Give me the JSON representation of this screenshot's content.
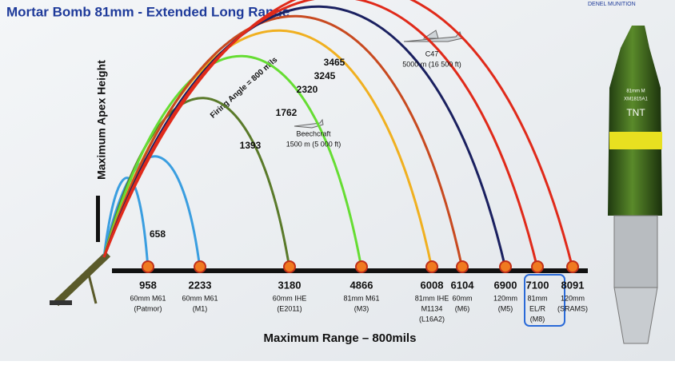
{
  "header": {
    "title": "Mortar Bomb 81mm - Extended Long Range",
    "logo": "DENEL MUNITION"
  },
  "axes": {
    "y_label": "Maximum Apex Height",
    "x_label": "Maximum Range – 800mils",
    "angle_label": "Firing Angle = 800 mils"
  },
  "impacts": [
    {
      "range": "958",
      "lines": [
        "60mm M61",
        "(Patmor)"
      ]
    },
    {
      "range": "2233",
      "lines": [
        "60mm M61",
        "(M1)"
      ]
    },
    {
      "range": "3180",
      "lines": [
        "60mm IHE",
        "(E2011)"
      ]
    },
    {
      "range": "4866",
      "lines": [
        "81mm M61",
        "(M3)"
      ]
    },
    {
      "range": "6008",
      "lines": [
        "81mm IHE",
        "M1134",
        "(L16A2)"
      ]
    },
    {
      "range": "6104",
      "lines": [
        "60mm",
        "(M6)"
      ]
    },
    {
      "range": "6900",
      "lines": [
        "120mm",
        "(M5)"
      ]
    },
    {
      "range": "7100",
      "lines": [
        "81mm",
        "EL/R",
        "(M8)"
      ]
    },
    {
      "range": "8091",
      "lines": [
        "120mm",
        "(SRAMS)"
      ]
    }
  ],
  "apex_heights": [
    "658",
    "1393",
    "1762",
    "2320",
    "3245",
    "3465"
  ],
  "aircraft": [
    {
      "name": "C47",
      "altitude": "5000 m (16 500 ft)"
    },
    {
      "name": "Beechcraft",
      "altitude": "1500 m (5 000 ft)"
    }
  ],
  "bomb": [
    "81mm M",
    "XM1815A1",
    "TNT"
  ]
}
